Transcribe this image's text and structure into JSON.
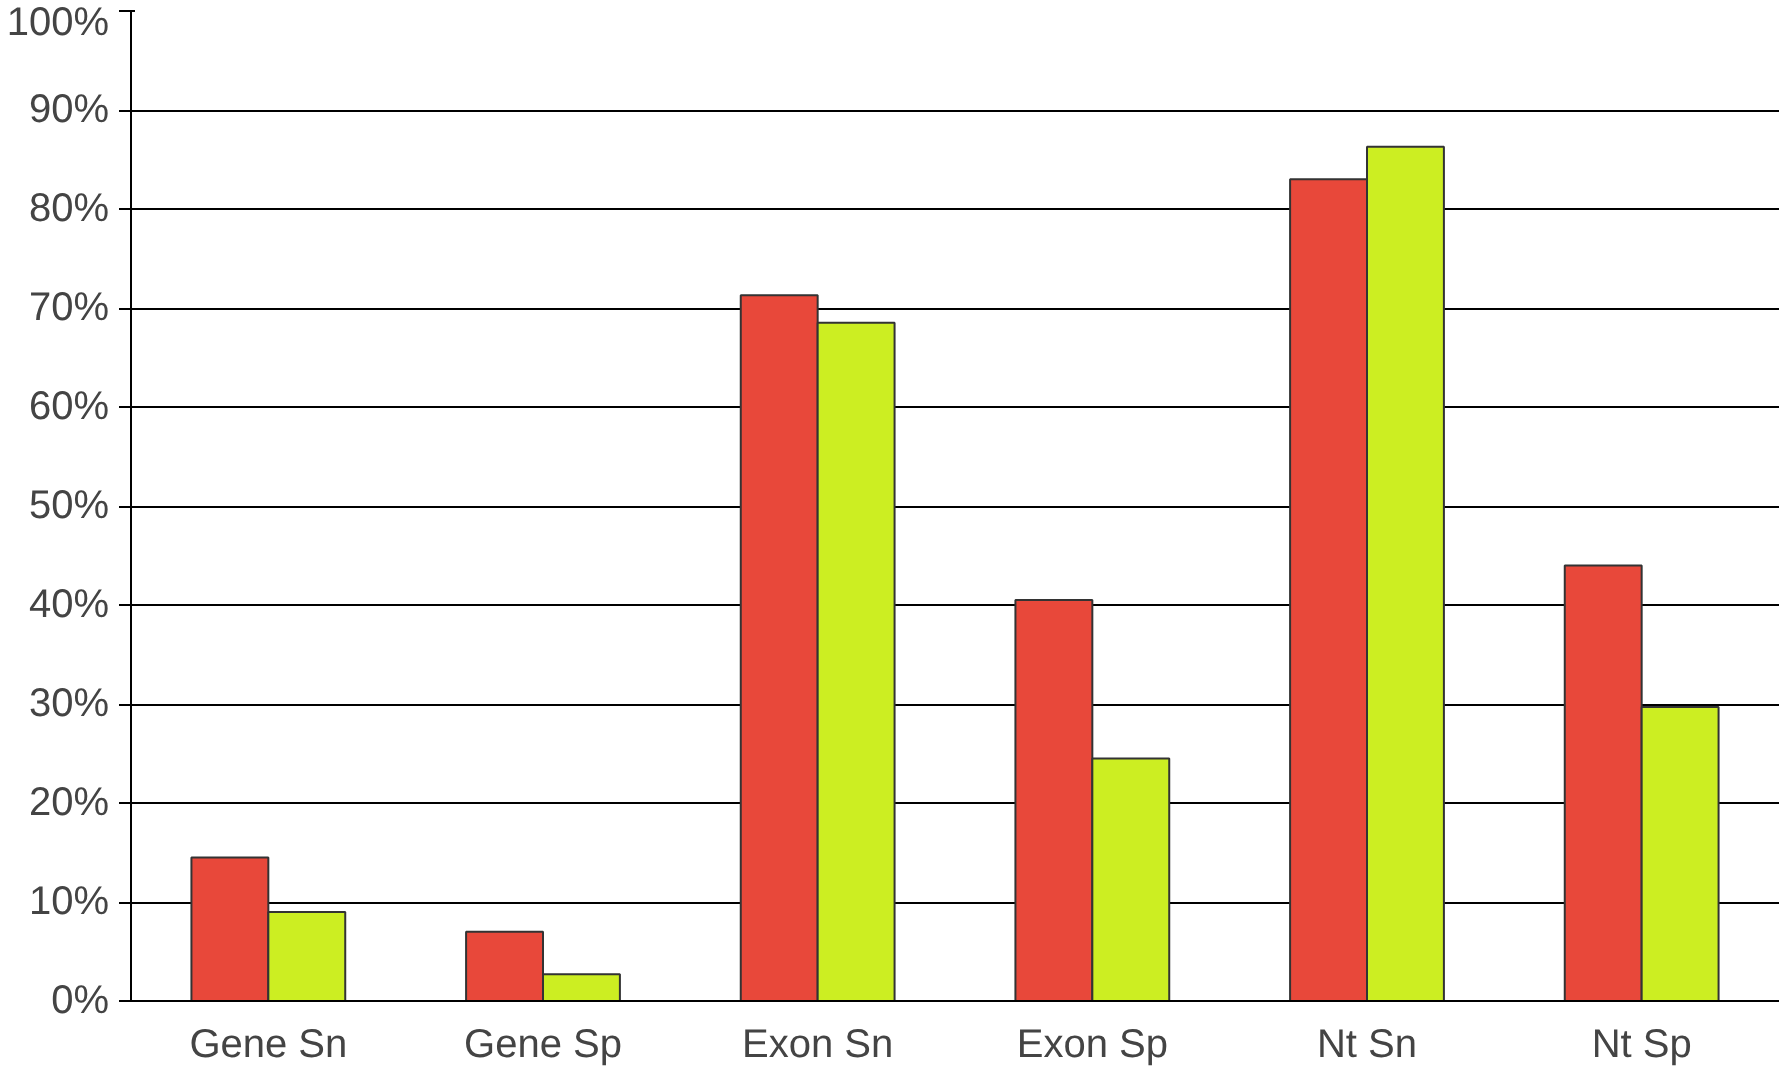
{
  "chart_data": {
    "type": "bar",
    "categories": [
      "Gene Sn",
      "Gene Sp",
      "Exon Sn",
      "Exon Sp",
      "Nt Sn",
      "Nt Sp"
    ],
    "series": [
      {
        "color": "#e8483a",
        "values": [
          14.5,
          7,
          71.3,
          40.5,
          83,
          44
        ]
      },
      {
        "color": "#ccee22",
        "values": [
          9,
          2.7,
          68.5,
          24.5,
          86.3,
          29.7
        ]
      }
    ],
    "ylim": [
      0,
      100
    ],
    "yticks": [
      {
        "value": 0,
        "label": "0%"
      },
      {
        "value": 10,
        "label": "10%"
      },
      {
        "value": 20,
        "label": "20%"
      },
      {
        "value": 30,
        "label": "30%"
      },
      {
        "value": 40,
        "label": "40%"
      },
      {
        "value": 50,
        "label": "50%"
      },
      {
        "value": 60,
        "label": "60%"
      },
      {
        "value": 70,
        "label": "70%"
      },
      {
        "value": 80,
        "label": "80%"
      },
      {
        "value": 90,
        "label": "90%"
      },
      {
        "value": 100,
        "label": "100%"
      }
    ],
    "grid": "y"
  }
}
